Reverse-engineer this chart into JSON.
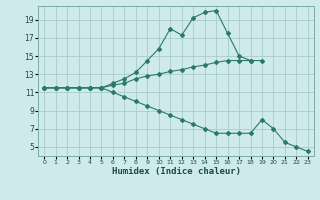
{
  "xlabel": "Humidex (Indice chaleur)",
  "bg_color": "#ceeaea",
  "grid_color": "#aacccc",
  "line_color": "#2a7a6a",
  "xlim": [
    -0.5,
    23.5
  ],
  "ylim": [
    4.0,
    20.5
  ],
  "xticks": [
    0,
    1,
    2,
    3,
    4,
    5,
    6,
    7,
    8,
    9,
    10,
    11,
    12,
    13,
    14,
    15,
    16,
    17,
    18,
    19,
    20,
    21,
    22,
    23
  ],
  "yticks": [
    5,
    7,
    9,
    11,
    13,
    15,
    17,
    19
  ],
  "line1_x": [
    0,
    1,
    2,
    3,
    4,
    5,
    6,
    7,
    8,
    9,
    10,
    11,
    12,
    13,
    14,
    15,
    16,
    17,
    18
  ],
  "line1_y": [
    11.5,
    11.5,
    11.5,
    11.5,
    11.5,
    11.5,
    12.0,
    12.5,
    13.2,
    14.5,
    15.8,
    18.0,
    17.3,
    19.2,
    19.8,
    20.0,
    17.5,
    15.0,
    14.5
  ],
  "line2_x": [
    0,
    1,
    2,
    3,
    4,
    5,
    6,
    7,
    8,
    9,
    10,
    11,
    12,
    13,
    14,
    15,
    16,
    17,
    18,
    19
  ],
  "line2_y": [
    11.5,
    11.5,
    11.5,
    11.5,
    11.5,
    11.5,
    11.8,
    12.0,
    12.5,
    12.8,
    13.0,
    13.3,
    13.5,
    13.8,
    14.0,
    14.3,
    14.5,
    14.5,
    14.5,
    14.5
  ],
  "line3_x": [
    0,
    1,
    2,
    3,
    4,
    5,
    6,
    7,
    8,
    9,
    10,
    11,
    12,
    13,
    14,
    15,
    16,
    17,
    18,
    19,
    20,
    21,
    22,
    23
  ],
  "line3_y": [
    11.5,
    11.5,
    11.5,
    11.5,
    11.5,
    11.5,
    11.0,
    10.5,
    10.0,
    9.5,
    9.0,
    8.5,
    8.0,
    7.5,
    7.0,
    6.5,
    6.5,
    6.5,
    6.5,
    8.0,
    7.0,
    5.5,
    5.0,
    4.5
  ]
}
